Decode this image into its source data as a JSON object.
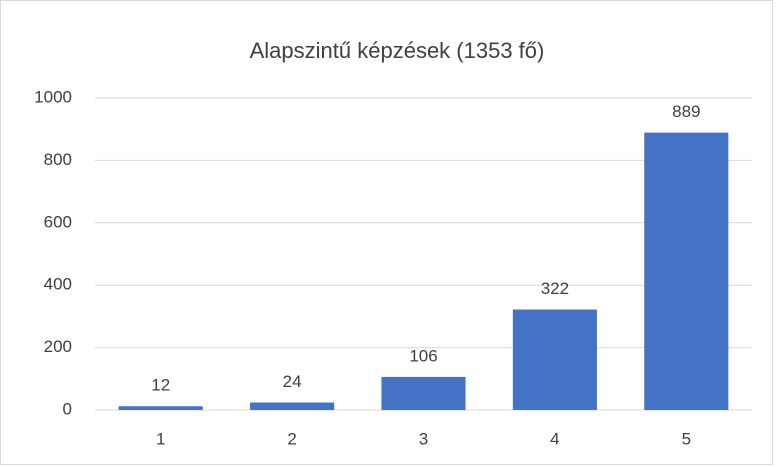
{
  "chart_data": {
    "type": "bar",
    "title": "Alapszintű képzések (1353 fő)",
    "categories": [
      "1",
      "2",
      "3",
      "4",
      "5"
    ],
    "values": [
      12,
      24,
      106,
      322,
      889
    ],
    "color": "#4472c4",
    "ylim": [
      0,
      1000
    ],
    "yticks": [
      0,
      200,
      400,
      600,
      800,
      1000
    ],
    "grid": true,
    "data_labels": true
  }
}
